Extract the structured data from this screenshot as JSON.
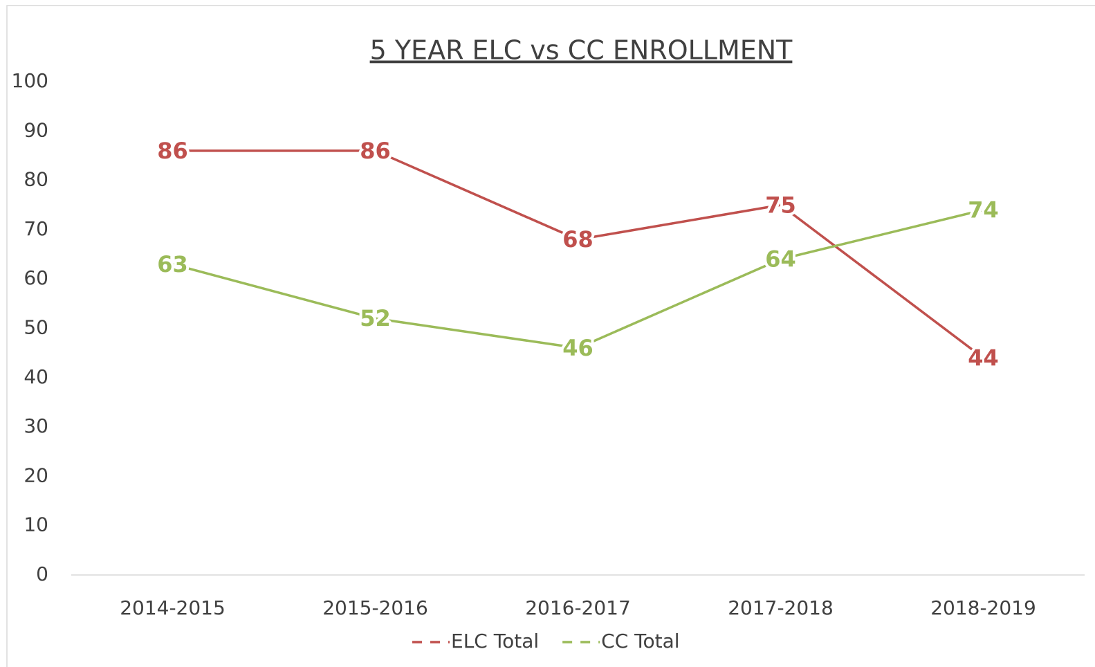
{
  "chart_data": {
    "type": "line",
    "title": "5 YEAR ELC vs CC ENROLLMENT",
    "categories": [
      "2014-2015",
      "2015-2016",
      "2016-2017",
      "2017-2018",
      "2018-2019"
    ],
    "series": [
      {
        "name": "ELC Total",
        "color": "#c0504d",
        "values": [
          86,
          86,
          68,
          75,
          44
        ]
      },
      {
        "name": "CC Total",
        "color": "#9bbb59",
        "values": [
          63,
          52,
          46,
          64,
          74
        ]
      }
    ],
    "ylim": [
      0,
      100
    ],
    "yticks": [
      0,
      10,
      20,
      30,
      40,
      50,
      60,
      70,
      80,
      90,
      100
    ],
    "grid": false
  }
}
